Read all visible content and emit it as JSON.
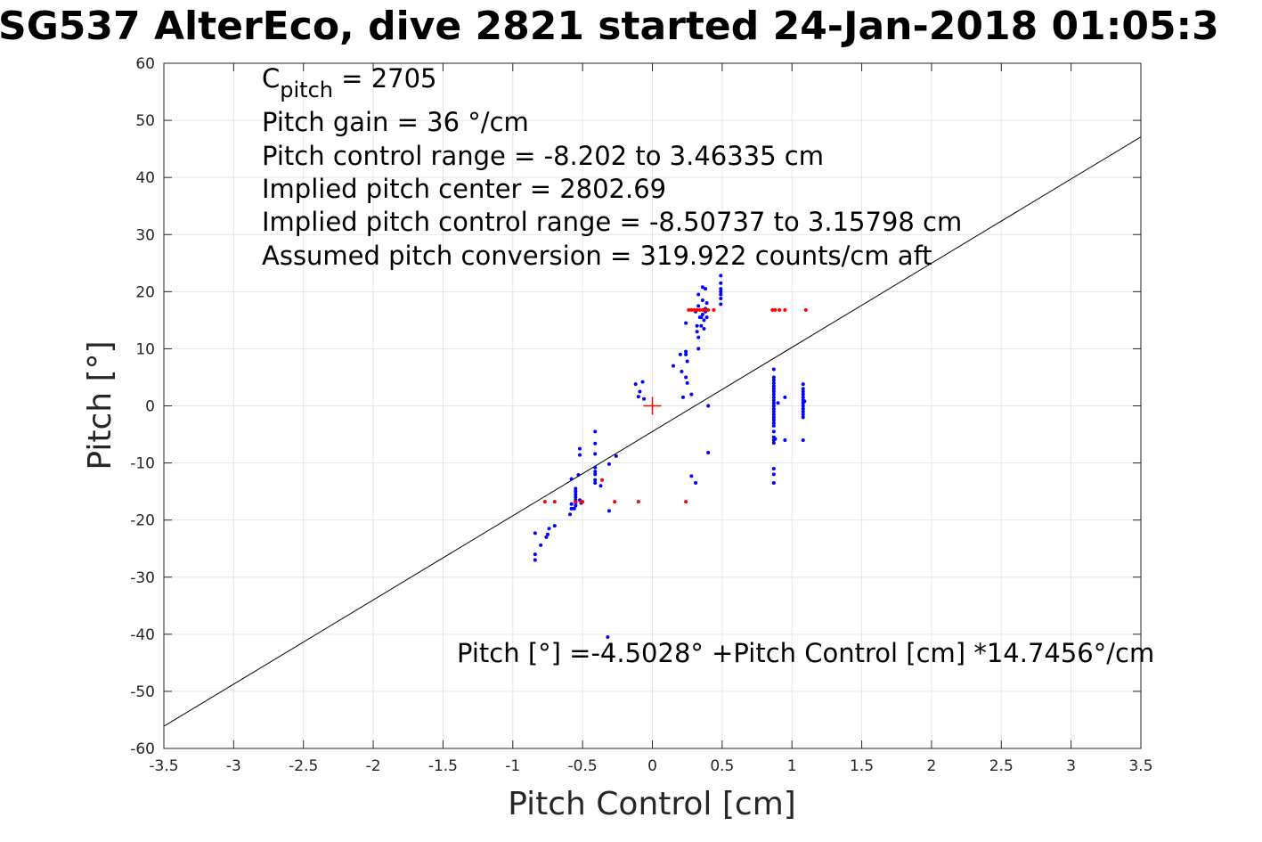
{
  "title": "SG537 AlterEco, dive 2821 started 24-Jan-2018 01:05:3",
  "chart_data": {
    "type": "scatter",
    "xlabel": "Pitch Control [cm]",
    "ylabel": "Pitch [°]",
    "xlim": [
      -3.5,
      3.5
    ],
    "ylim": [
      -60,
      60
    ],
    "xticks": [
      -3.5,
      -3,
      -2.5,
      -2,
      -1.5,
      -1,
      -0.5,
      0,
      0.5,
      1,
      1.5,
      2,
      2.5,
      3,
      3.5
    ],
    "xtick_labels": [
      "-3.5",
      "-3",
      "-2.5",
      "-2",
      "-1.5",
      "-1",
      "-0.5",
      "0",
      "0.5",
      "1",
      "1.5",
      "2",
      "2.5",
      "3",
      "3.5"
    ],
    "yticks": [
      -60,
      -50,
      -40,
      -30,
      -20,
      -10,
      0,
      10,
      20,
      30,
      40,
      50,
      60
    ],
    "ytick_labels": [
      "-60",
      "-50",
      "-40",
      "-30",
      "-20",
      "-10",
      "0",
      "10",
      "20",
      "30",
      "40",
      "50",
      "60"
    ],
    "grid": true,
    "annotations": {
      "c_pitch_main": "C",
      "c_pitch_sub": "pitch",
      "c_pitch_value": " = 2705",
      "lines": [
        "Pitch gain = 36 °/cm",
        "Pitch control range = -8.202 to 3.46335 cm",
        "Implied pitch center = 2802.69",
        "Implied pitch control range = -8.50737 to 3.15798 cm",
        "Assumed pitch conversion = 319.922 counts/cm aft"
      ],
      "fit_equation": "Pitch [°] =-4.5028° +Pitch Control [cm] *14.7456°/cm"
    },
    "fit_line": {
      "intercept": -4.5028,
      "slope": 14.7456,
      "color": "#000000"
    },
    "center_marker": {
      "x": 0,
      "y": 0,
      "color": "#ff0000"
    },
    "series": [
      {
        "color": "#0000ff",
        "points": [
          [
            -0.84,
            -27
          ],
          [
            -0.84,
            -26
          ],
          [
            -0.84,
            -22.3
          ],
          [
            -0.8,
            -24.4
          ],
          [
            -0.76,
            -23
          ],
          [
            -0.75,
            -22.5
          ],
          [
            -0.74,
            -21.5
          ],
          [
            -0.7,
            -21
          ],
          [
            -0.59,
            -19
          ],
          [
            -0.58,
            -18
          ],
          [
            -0.58,
            -17.2
          ],
          [
            -0.58,
            -12.8
          ],
          [
            -0.56,
            -18
          ],
          [
            -0.55,
            -17.5
          ],
          [
            -0.55,
            -17
          ],
          [
            -0.55,
            -16.5
          ],
          [
            -0.55,
            -16
          ],
          [
            -0.55,
            -15.5
          ],
          [
            -0.55,
            -15
          ],
          [
            -0.55,
            -14.5
          ],
          [
            -0.55,
            -16.8
          ],
          [
            -0.53,
            -12.1
          ],
          [
            -0.52,
            -8.6
          ],
          [
            -0.52,
            -7.5
          ],
          [
            -0.52,
            -16.5
          ],
          [
            -0.51,
            -17
          ],
          [
            -0.41,
            -13
          ],
          [
            -0.41,
            -12
          ],
          [
            -0.41,
            -11.5
          ],
          [
            -0.41,
            -10.8
          ],
          [
            -0.41,
            -8.4
          ],
          [
            -0.41,
            -6.6
          ],
          [
            -0.41,
            -4.5
          ],
          [
            -0.41,
            -13.5
          ],
          [
            -0.37,
            -14
          ],
          [
            -0.31,
            -18.4
          ],
          [
            -0.31,
            -10.2
          ],
          [
            -0.26,
            -8.8
          ],
          [
            -0.32,
            -40.5
          ],
          [
            -0.12,
            3.8
          ],
          [
            -0.1,
            1.6
          ],
          [
            -0.09,
            2.5
          ],
          [
            -0.07,
            4.2
          ],
          [
            -0.06,
            1.2
          ],
          [
            0.15,
            7
          ],
          [
            0.2,
            9
          ],
          [
            0.21,
            6
          ],
          [
            0.22,
            1.5
          ],
          [
            0.24,
            9.5
          ],
          [
            0.24,
            9
          ],
          [
            0.25,
            7.8
          ],
          [
            0.24,
            5
          ],
          [
            0.25,
            4
          ],
          [
            0.24,
            14.5
          ],
          [
            0.28,
            2
          ],
          [
            0.28,
            -12.3
          ],
          [
            0.31,
            -13.5
          ],
          [
            0.31,
            16.5
          ],
          [
            0.32,
            14
          ],
          [
            0.32,
            13
          ],
          [
            0.33,
            12
          ],
          [
            0.33,
            17.5
          ],
          [
            0.33,
            19.5
          ],
          [
            0.33,
            10
          ],
          [
            0.34,
            15.5
          ],
          [
            0.35,
            14
          ],
          [
            0.35,
            15.5
          ],
          [
            0.36,
            16
          ],
          [
            0.36,
            18.5
          ],
          [
            0.36,
            20.8
          ],
          [
            0.37,
            13.5
          ],
          [
            0.37,
            15
          ],
          [
            0.38,
            16.5
          ],
          [
            0.38,
            17
          ],
          [
            0.38,
            20.5
          ],
          [
            0.39,
            18
          ],
          [
            0.39,
            15.5
          ],
          [
            0.4,
            0
          ],
          [
            0.4,
            -8.2
          ],
          [
            0.49,
            22.8
          ],
          [
            0.49,
            21.5
          ],
          [
            0.49,
            20.5
          ],
          [
            0.49,
            20
          ],
          [
            0.49,
            19.5
          ],
          [
            0.49,
            18.8
          ],
          [
            0.49,
            17.8
          ],
          [
            0.87,
            6.4
          ],
          [
            0.87,
            5
          ],
          [
            0.87,
            4.5
          ],
          [
            0.87,
            4
          ],
          [
            0.87,
            3.5
          ],
          [
            0.87,
            3
          ],
          [
            0.87,
            2.5
          ],
          [
            0.87,
            2
          ],
          [
            0.87,
            1.5
          ],
          [
            0.87,
            1
          ],
          [
            0.87,
            0.5
          ],
          [
            0.87,
            0
          ],
          [
            0.87,
            -0.5
          ],
          [
            0.87,
            -1
          ],
          [
            0.87,
            -1.5
          ],
          [
            0.87,
            -2
          ],
          [
            0.87,
            -2.5
          ],
          [
            0.87,
            -3
          ],
          [
            0.87,
            -3.5
          ],
          [
            0.87,
            -4.5
          ],
          [
            0.87,
            -5.5
          ],
          [
            0.87,
            -6
          ],
          [
            0.87,
            -6.5
          ],
          [
            0.87,
            -11
          ],
          [
            0.87,
            -12
          ],
          [
            0.87,
            -13.5
          ],
          [
            0.88,
            -5.8
          ],
          [
            0.9,
            0.5
          ],
          [
            0.95,
            1.5
          ],
          [
            0.95,
            -6
          ],
          [
            1.08,
            3.8
          ],
          [
            1.08,
            3
          ],
          [
            1.08,
            2.5
          ],
          [
            1.08,
            2
          ],
          [
            1.08,
            1.5
          ],
          [
            1.08,
            1
          ],
          [
            1.08,
            0.5
          ],
          [
            1.08,
            0
          ],
          [
            1.08,
            -0.5
          ],
          [
            1.08,
            -1
          ],
          [
            1.08,
            -1.5
          ],
          [
            1.08,
            -2
          ],
          [
            1.08,
            -6
          ],
          [
            1.09,
            0.8
          ]
        ]
      },
      {
        "color": "#ff0000",
        "points": [
          [
            -0.77,
            -16.8
          ],
          [
            -0.7,
            -16.8
          ],
          [
            -0.55,
            -16.8
          ],
          [
            -0.51,
            -16.8
          ],
          [
            -0.5,
            -16.8
          ],
          [
            -0.36,
            -13
          ],
          [
            -0.27,
            -16.8
          ],
          [
            -0.1,
            -16.8
          ],
          [
            0.24,
            -16.8
          ],
          [
            0.26,
            16.8
          ],
          [
            0.28,
            16.8
          ],
          [
            0.3,
            16.8
          ],
          [
            0.32,
            16.8
          ],
          [
            0.34,
            16.8
          ],
          [
            0.36,
            16.8
          ],
          [
            0.38,
            16.8
          ],
          [
            0.4,
            16.8
          ],
          [
            0.44,
            16.8
          ],
          [
            0.86,
            16.8
          ],
          [
            0.88,
            16.8
          ],
          [
            0.91,
            16.8
          ],
          [
            0.95,
            16.8
          ],
          [
            1.1,
            16.8
          ]
        ]
      }
    ]
  }
}
